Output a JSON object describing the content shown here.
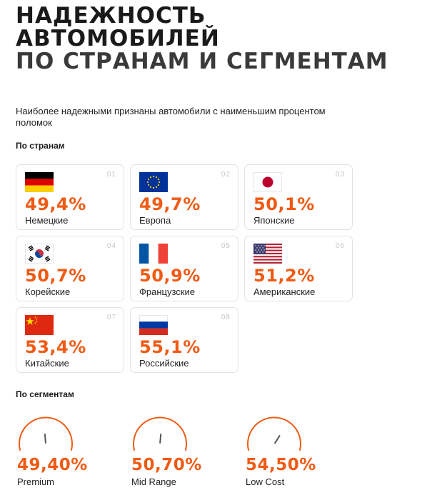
{
  "header": {
    "title_line1": "НАДЕЖНОСТЬ",
    "title_line2": "АВТОМОБИЛЕЙ",
    "title_line3": "ПО СТРАНАМ И СЕГМЕНТАМ"
  },
  "intro_text": "Наиболее надежными   признаны автомобили с наименьшим процентом поломок",
  "countries_label": "По странам",
  "countries": [
    {
      "num": "01",
      "value": "49,4%",
      "name": "Немецкие",
      "flag": "germany-flag-icon"
    },
    {
      "num": "02",
      "value": "49,7%",
      "name": "Европа",
      "flag": "eu-flag-icon"
    },
    {
      "num": "03",
      "value": "50,1%",
      "name": "Японские",
      "flag": "japan-flag-icon"
    },
    {
      "num": "04",
      "value": "50,7%",
      "name": "Корейские",
      "flag": "korea-flag-icon"
    },
    {
      "num": "05",
      "value": "50,9%",
      "name": "Французские",
      "flag": "france-flag-icon"
    },
    {
      "num": "06",
      "value": "51,2%",
      "name": "Американские",
      "flag": "usa-flag-icon"
    },
    {
      "num": "07",
      "value": "53,4%",
      "name": "Китайские",
      "flag": "china-flag-icon"
    },
    {
      "num": "08",
      "value": "55,1%",
      "name": "Российские",
      "flag": "russia-flag-icon"
    }
  ],
  "segments_label": "По сегментам",
  "segments": [
    {
      "value": "49,40%",
      "name": "Premium",
      "gauge_level": 0.494,
      "gauge_icon": "gauge-icon"
    },
    {
      "value": "50,70%",
      "name": "Mid Range",
      "gauge_level": 0.507,
      "gauge_icon": "gauge-icon"
    },
    {
      "value": "54,50%",
      "name": "Low Cost",
      "gauge_level": 0.545,
      "gauge_icon": "gauge-icon"
    }
  ],
  "colors": {
    "accent": "#f05a14",
    "text": "#1a1a1a",
    "card_border": "#e3e3e3"
  }
}
